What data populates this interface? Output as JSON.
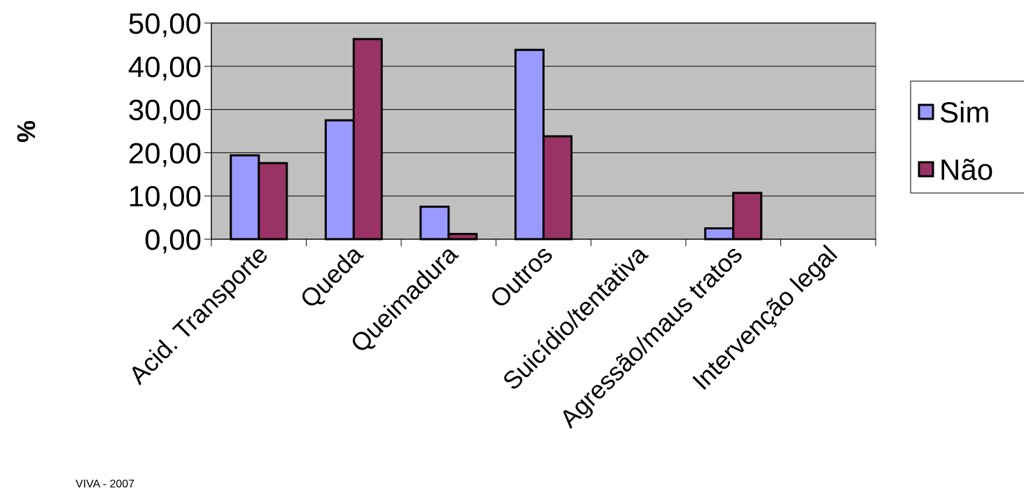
{
  "chart_data": {
    "type": "bar",
    "categories": [
      "Acid. Transporte",
      "Queda",
      "Queimadura",
      "Outros",
      "Suicídio/tentativa",
      "Agressão/maus tratos",
      "Intervenção legal"
    ],
    "series": [
      {
        "name": "Sim",
        "values": [
          19.4,
          27.5,
          7.5,
          43.8,
          0,
          2.5,
          0
        ],
        "color": "#9999ff"
      },
      {
        "name": "Não",
        "values": [
          17.6,
          46.3,
          1.2,
          23.8,
          0,
          10.7,
          0
        ],
        "color": "#993366"
      }
    ],
    "ylabel": "%",
    "ylim": [
      0,
      50
    ],
    "yticks": [
      "0,00",
      "10,00",
      "20,00",
      "30,00",
      "40,00",
      "50,00"
    ],
    "grid": true,
    "plot_background": "#c0c0c0",
    "legend_position": "right"
  },
  "footer": {
    "source": "VIVA - 2007"
  }
}
